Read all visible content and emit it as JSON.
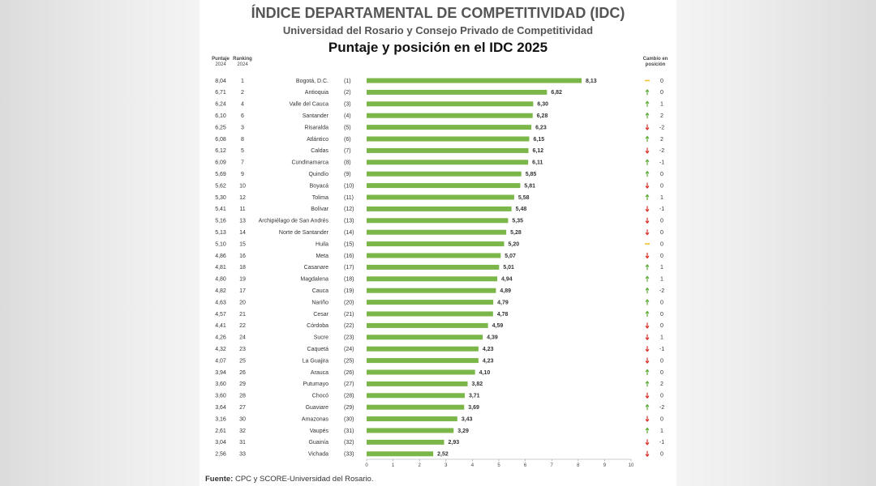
{
  "title": "ÍNDICE DEPARTAMENTAL DE COMPETITIVIDAD (IDC)",
  "subtitle": "Universidad del Rosario y Consejo Privado de Competitividad",
  "chart_title": "Puntaje y posición en el IDC 2025",
  "headers": {
    "score_2024_line1": "Puntaje",
    "score_2024_line2": "2024",
    "rank_2024_line1": "Ranking",
    "rank_2024_line2": "2024",
    "change_line1": "Cambio en",
    "change_line2": "posición"
  },
  "source_label": "Fuente:",
  "source_text": "CPC y SCORE-Universidad del Rosario.",
  "colors": {
    "bar": "#7ab648",
    "up": "#5fae3c",
    "down": "#d9342b",
    "same": "#f2c12e"
  },
  "chart_data": {
    "type": "bar",
    "orientation": "horizontal",
    "xlim": [
      0,
      10
    ],
    "xticks": [
      "0",
      "1",
      "2",
      "3",
      "4",
      "5",
      "6",
      "7",
      "8",
      "9",
      "10"
    ],
    "categories": [
      "Bogotá, D.C.",
      "Antioquia",
      "Valle del Cauca",
      "Santander",
      "Risaralda",
      "Atlántico",
      "Caldas",
      "Cundinamarca",
      "Quindío",
      "Boyacá",
      "Tolima",
      "Bolívar",
      "Archipiélago de San Andrés",
      "Norte de Santander",
      "Huila",
      "Meta",
      "Casanare",
      "Magdalena",
      "Cauca",
      "Nariño",
      "Cesar",
      "Córdoba",
      "Sucre",
      "Caquetá",
      "La Guajira",
      "Arauca",
      "Putumayo",
      "Chocó",
      "Guaviare",
      "Amazonas",
      "Vaupés",
      "Guainía",
      "Vichada"
    ],
    "rank_labels": [
      "(1)",
      "(2)",
      "(3)",
      "(4)",
      "(5)",
      "(6)",
      "(7)",
      "(8)",
      "(9)",
      "(10)",
      "(11)",
      "(12)",
      "(13)",
      "(14)",
      "(15)",
      "(16)",
      "(17)",
      "(18)",
      "(19)",
      "(20)",
      "(21)",
      "(22)",
      "(23)",
      "(24)",
      "(25)",
      "(26)",
      "(27)",
      "(28)",
      "(29)",
      "(30)",
      "(31)",
      "(32)",
      "(33)"
    ],
    "values": [
      8.13,
      6.82,
      6.3,
      6.28,
      6.23,
      6.15,
      6.12,
      6.11,
      5.85,
      5.81,
      5.58,
      5.48,
      5.35,
      5.28,
      5.2,
      5.07,
      5.01,
      4.94,
      4.89,
      4.79,
      4.78,
      4.59,
      4.39,
      4.23,
      4.23,
      4.1,
      3.82,
      3.71,
      3.69,
      3.43,
      3.29,
      2.93,
      2.52
    ],
    "value_labels": [
      "8,13",
      "6,82",
      "6,30",
      "6,28",
      "6,23",
      "6,15",
      "6,12",
      "6,11",
      "5,85",
      "5,81",
      "5,58",
      "5,48",
      "5,35",
      "5,28",
      "5,20",
      "5,07",
      "5,01",
      "4,94",
      "4,89",
      "4,79",
      "4,78",
      "4,59",
      "4,39",
      "4,23",
      "4,23",
      "4,10",
      "3,82",
      "3,71",
      "3,69",
      "3,43",
      "3,29",
      "2,93",
      "2,52"
    ],
    "score_2024": [
      "8,04",
      "6,71",
      "6,24",
      "6,10",
      "6,25",
      "6,08",
      "6,12",
      "6,09",
      "5,69",
      "5,62",
      "5,30",
      "5,41",
      "5,16",
      "5,13",
      "5,10",
      "4,86",
      "4,81",
      "4,80",
      "4,82",
      "4,63",
      "4,57",
      "4,41",
      "4,26",
      "4,32",
      "4,07",
      "3,94",
      "3,60",
      "3,60",
      "3,64",
      "3,16",
      "2,61",
      "3,04",
      "2,56"
    ],
    "rank_2024": [
      "1",
      "2",
      "4",
      "6",
      "3",
      "8",
      "5",
      "7",
      "9",
      "10",
      "12",
      "11",
      "13",
      "14",
      "15",
      "16",
      "18",
      "19",
      "17",
      "20",
      "21",
      "22",
      "24",
      "23",
      "25",
      "26",
      "29",
      "28",
      "27",
      "30",
      "32",
      "31",
      "33"
    ],
    "change_direction": [
      "same",
      "up",
      "up",
      "up",
      "down",
      "up",
      "down",
      "up",
      "up",
      "down",
      "up",
      "down",
      "down",
      "down",
      "same",
      "down",
      "up",
      "up",
      "up",
      "up",
      "up",
      "down",
      "down",
      "down",
      "down",
      "up",
      "up",
      "down",
      "up",
      "down",
      "up",
      "down",
      "down"
    ],
    "change_value": [
      "0",
      "0",
      "1",
      "2",
      "-2",
      "2",
      "-2",
      "-1",
      "0",
      "0",
      "1",
      "-1",
      "0",
      "0",
      "0",
      "0",
      "1",
      "1",
      "-2",
      "0",
      "0",
      "0",
      "1",
      "-1",
      "0",
      "0",
      "2",
      "0",
      "-2",
      "0",
      "1",
      "-1",
      "0"
    ]
  }
}
